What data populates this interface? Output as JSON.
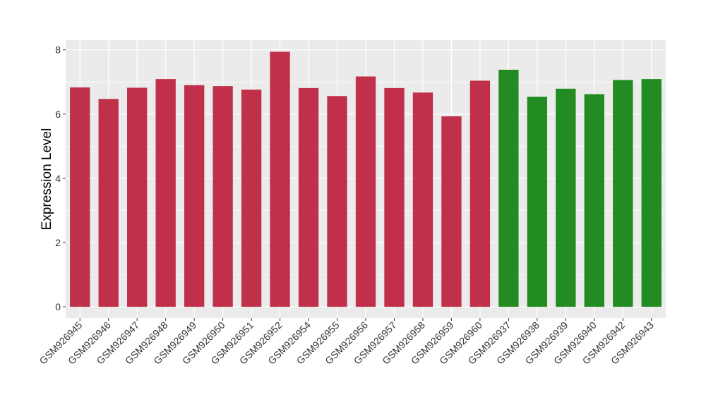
{
  "chart_data": {
    "type": "bar",
    "title": "",
    "xlabel": "",
    "ylabel": "Expression Level",
    "ylim": [
      -0.35,
      8.3
    ],
    "yticks": [
      0,
      2,
      4,
      6,
      8
    ],
    "grid": true,
    "legend": "none",
    "categories": [
      "GSM926945",
      "GSM926946",
      "GSM926947",
      "GSM926948",
      "GSM926949",
      "GSM926950",
      "GSM926951",
      "GSM926952",
      "GSM926954",
      "GSM926955",
      "GSM926956",
      "GSM926957",
      "GSM926958",
      "GSM926959",
      "GSM926960",
      "GSM926937",
      "GSM926938",
      "GSM926939",
      "GSM926940",
      "GSM926942",
      "GSM926943"
    ],
    "values": [
      6.83,
      6.47,
      6.82,
      7.09,
      6.9,
      6.87,
      6.76,
      7.94,
      6.81,
      6.56,
      7.17,
      6.81,
      6.67,
      5.93,
      7.04,
      7.38,
      6.54,
      6.79,
      6.62,
      7.06,
      7.09
    ],
    "bar_colors": [
      "#c0304a",
      "#c0304a",
      "#c0304a",
      "#c0304a",
      "#c0304a",
      "#c0304a",
      "#c0304a",
      "#c0304a",
      "#c0304a",
      "#c0304a",
      "#c0304a",
      "#c0304a",
      "#c0304a",
      "#c0304a",
      "#c0304a",
      "#228b22",
      "#228b22",
      "#228b22",
      "#228b22",
      "#228b22",
      "#228b22"
    ],
    "panel_color": "#ebebeb",
    "grid_color": "#ffffff"
  }
}
